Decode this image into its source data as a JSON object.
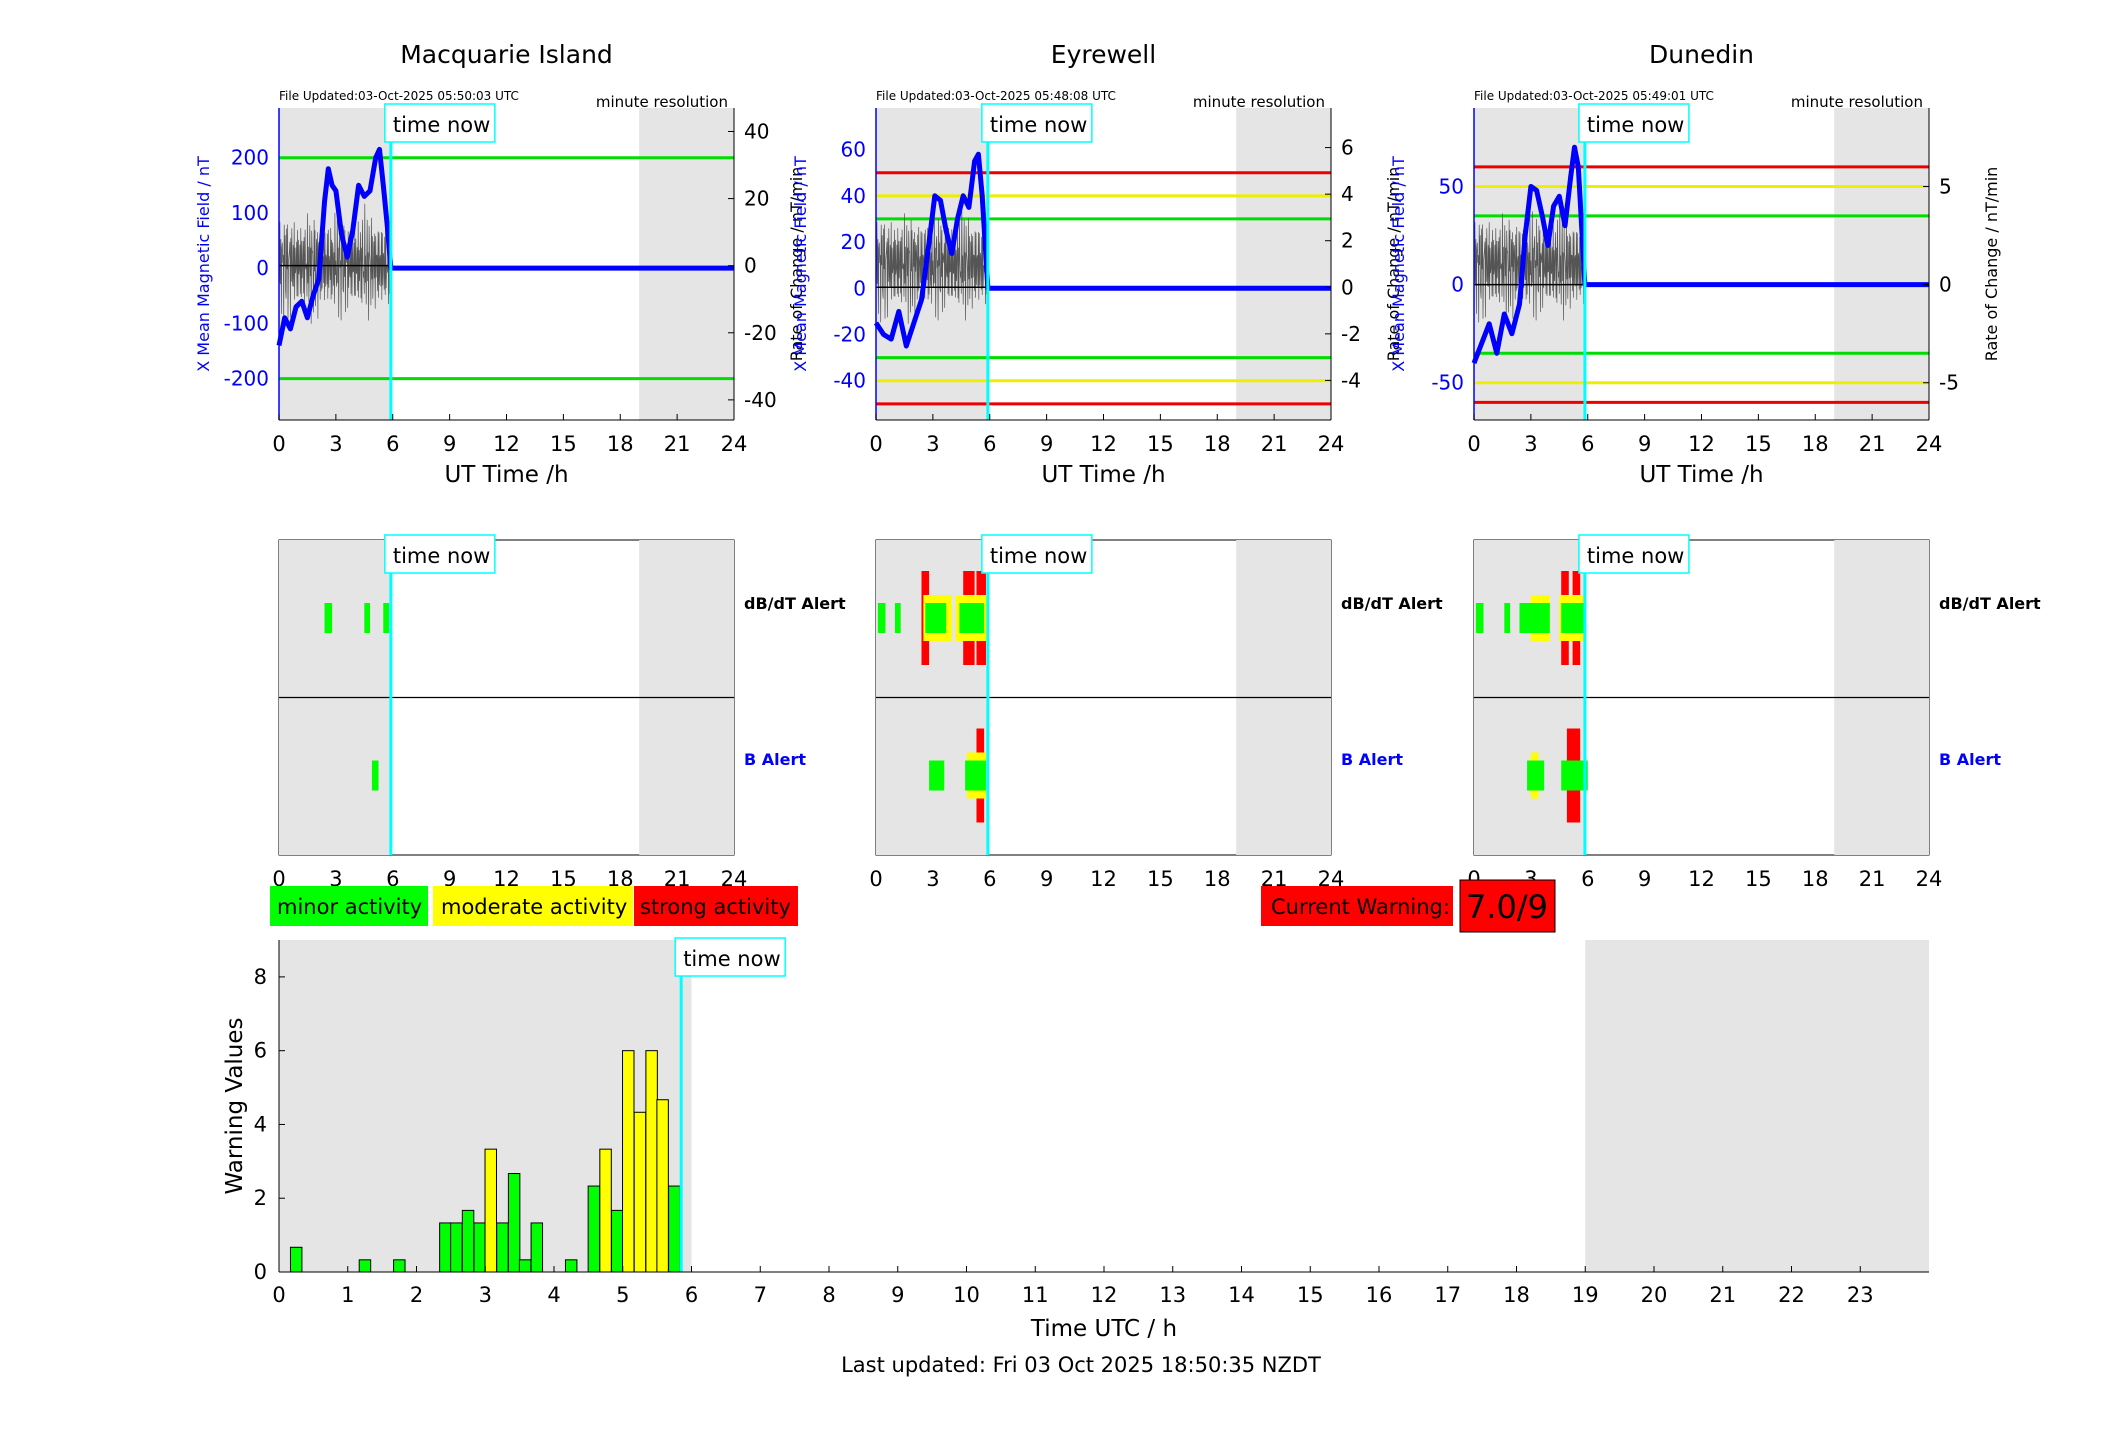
{
  "colors": {
    "minor": "#00ff00",
    "moderate": "#ffff00",
    "strong": "#ff0000",
    "field": "#0000ff",
    "now": "#00ffff",
    "shade": "#e5e5e5"
  },
  "legend": {
    "minor": "minor activity",
    "moderate": "moderate activity",
    "strong": "strong activity"
  },
  "warning": {
    "label": "Current Warning:",
    "value": "7.0/9"
  },
  "footer": {
    "last_updated": "Last updated: Fri 03 Oct 2025 18:50:35 NZDT"
  },
  "common": {
    "time_now": "time now",
    "xlabel": "UT Time /h",
    "ylabel_left": "X Mean Magnetic Field / nT",
    "ylabel_right": "Rate of Change / nT/min",
    "resolution": "minute resolution",
    "dbdt_alert": "dB/dT Alert",
    "b_alert": "B Alert",
    "x_ticks": [
      "0",
      "3",
      "6",
      "9",
      "12",
      "15",
      "18",
      "21",
      "24"
    ]
  },
  "stations": [
    {
      "name": "Macquarie Island",
      "updated": "File Updated:03-Oct-2025 05:50:03 UTC",
      "now": 5.9,
      "left_ticks": [
        "200",
        "100",
        "0",
        "-100",
        "-200"
      ],
      "right_ticks": [
        "40",
        "20",
        "0",
        "-20",
        "-40"
      ]
    },
    {
      "name": "Eyrewell",
      "updated": "File Updated:03-Oct-2025 05:48:08 UTC",
      "now": 5.9,
      "left_ticks": [
        "60",
        "40",
        "20",
        "0",
        "-20",
        "-40"
      ],
      "right_ticks": [
        "6",
        "4",
        "2",
        "0",
        "-2",
        "-4"
      ]
    },
    {
      "name": "Dunedin",
      "updated": "File Updated:03-Oct-2025 05:49:01 UTC",
      "now": 5.85,
      "left_ticks": [
        "50",
        "0",
        "-50"
      ],
      "right_ticks": [
        "5",
        "0",
        "-5"
      ]
    }
  ],
  "chart_data": [
    {
      "type": "line",
      "title": "Macquarie Island",
      "xlabel": "UT Time /h",
      "ylabel": "X Mean Magnetic Field / nT",
      "ylabel_right": "Rate of Change / nT/min",
      "xlim": [
        0,
        24
      ],
      "ylim": [
        -275,
        290
      ],
      "ylim_right": [
        -46,
        47
      ],
      "threshold_lines": [
        {
          "y": 200,
          "color": "green"
        },
        {
          "y": -200,
          "color": "green"
        }
      ],
      "series": [
        {
          "x": [
            0,
            0.3,
            0.6,
            0.9,
            1.2,
            1.5,
            1.8,
            2.1,
            2.4,
            2.6,
            2.8,
            3.0,
            3.3,
            3.6,
            3.9,
            4.2,
            4.5,
            4.8,
            5.1,
            5.3,
            5.5,
            5.7,
            5.9,
            24
          ],
          "y": [
            -140,
            -90,
            -110,
            -70,
            -60,
            -90,
            -50,
            -20,
            120,
            180,
            150,
            140,
            60,
            20,
            70,
            150,
            130,
            140,
            200,
            215,
            150,
            80,
            0,
            0
          ]
        }
      ]
    },
    {
      "type": "line",
      "title": "Eyrewell",
      "xlabel": "UT Time /h",
      "ylabel": "X Mean Magnetic Field / nT",
      "ylabel_right": "Rate of Change / nT/min",
      "xlim": [
        0,
        24
      ],
      "ylim": [
        -57,
        78
      ],
      "ylim_right": [
        -5.7,
        7.7
      ],
      "threshold_lines": [
        {
          "y": 50,
          "color": "red"
        },
        {
          "y": 40,
          "color": "yellow"
        },
        {
          "y": 30,
          "color": "green"
        },
        {
          "y": -30,
          "color": "green"
        },
        {
          "y": -40,
          "color": "yellow"
        },
        {
          "y": -50,
          "color": "red"
        }
      ],
      "series": [
        {
          "x": [
            0,
            0.4,
            0.8,
            1.2,
            1.6,
            2.0,
            2.4,
            2.8,
            3.1,
            3.4,
            3.7,
            4.0,
            4.3,
            4.6,
            4.9,
            5.2,
            5.4,
            5.6,
            5.9,
            24
          ],
          "y": [
            -15,
            -20,
            -22,
            -10,
            -25,
            -15,
            -5,
            20,
            40,
            38,
            25,
            15,
            30,
            40,
            35,
            55,
            58,
            40,
            0,
            0
          ]
        }
      ]
    },
    {
      "type": "line",
      "title": "Dunedin",
      "xlabel": "UT Time /h",
      "ylabel": "X Mean Magnetic Field / nT",
      "ylabel_right": "Rate of Change / nT/min",
      "xlim": [
        0,
        24
      ],
      "ylim": [
        -69,
        90
      ],
      "ylim_right": [
        -6.9,
        9.0
      ],
      "threshold_lines": [
        {
          "y": 60,
          "color": "red"
        },
        {
          "y": 50,
          "color": "yellow"
        },
        {
          "y": 35,
          "color": "green"
        },
        {
          "y": -35,
          "color": "green"
        },
        {
          "y": -50,
          "color": "yellow"
        },
        {
          "y": -60,
          "color": "red"
        }
      ],
      "series": [
        {
          "x": [
            0,
            0.4,
            0.8,
            1.2,
            1.6,
            2.0,
            2.4,
            2.7,
            3.0,
            3.3,
            3.6,
            3.9,
            4.2,
            4.5,
            4.8,
            5.1,
            5.3,
            5.5,
            5.85,
            24
          ],
          "y": [
            -40,
            -30,
            -20,
            -35,
            -15,
            -25,
            -10,
            25,
            50,
            48,
            35,
            20,
            40,
            45,
            30,
            55,
            70,
            60,
            0,
            0
          ]
        }
      ]
    },
    {
      "type": "bar",
      "title": "",
      "xlabel": "Time UTC / h",
      "ylabel": "Warning Values",
      "xlim": [
        0,
        24
      ],
      "ylim": [
        0,
        9
      ],
      "x": [
        0.25,
        1.25,
        1.75,
        2.42,
        2.58,
        2.75,
        2.92,
        3.08,
        3.25,
        3.42,
        3.58,
        3.75,
        4.25,
        4.58,
        4.75,
        4.92,
        5.08,
        5.25,
        5.42,
        5.58,
        5.75
      ],
      "values": [
        0.67,
        0.33,
        0.33,
        1.33,
        1.33,
        1.67,
        1.33,
        3.33,
        1.33,
        2.67,
        0.33,
        1.33,
        0.33,
        2.33,
        3.33,
        1.67,
        6.0,
        4.33,
        6.0,
        4.67,
        2.33
      ],
      "bar_colors": [
        "minor",
        "minor",
        "minor",
        "minor",
        "minor",
        "minor",
        "minor",
        "moderate",
        "minor",
        "minor",
        "minor",
        "minor",
        "minor",
        "minor",
        "moderate",
        "minor",
        "moderate",
        "moderate",
        "moderate",
        "moderate",
        "minor"
      ],
      "x_ticks": [
        "0",
        "1",
        "2",
        "3",
        "4",
        "5",
        "6",
        "7",
        "8",
        "9",
        "10",
        "11",
        "12",
        "13",
        "14",
        "15",
        "16",
        "17",
        "18",
        "19",
        "20",
        "21",
        "22",
        "23"
      ],
      "y_ticks": [
        "0",
        "2",
        "4",
        "6",
        "8"
      ]
    },
    {
      "type": "alert_timeline",
      "title": "Macquarie Island",
      "rows": [
        "dB/dT Alert",
        "B Alert"
      ],
      "dbdt_blocks": [
        [
          2.4,
          2.8,
          "minor"
        ],
        [
          4.5,
          4.8,
          "minor"
        ],
        [
          5.5,
          5.8,
          "minor"
        ]
      ],
      "b_blocks": [
        [
          4.9,
          5.25,
          "minor"
        ]
      ]
    },
    {
      "type": "alert_timeline",
      "title": "Eyrewell",
      "rows": [
        "dB/dT Alert",
        "B Alert"
      ],
      "dbdt_blocks": [
        [
          0.1,
          0.5,
          "minor"
        ],
        [
          1.0,
          1.3,
          "minor"
        ],
        [
          2.4,
          2.8,
          "strong"
        ],
        [
          2.5,
          4.0,
          "moderate"
        ],
        [
          2.6,
          3.7,
          "minor"
        ],
        [
          4.2,
          5.9,
          "moderate"
        ],
        [
          4.4,
          5.7,
          "minor"
        ],
        [
          4.6,
          5.2,
          "strong"
        ],
        [
          5.3,
          5.8,
          "strong"
        ]
      ],
      "b_blocks": [
        [
          2.8,
          3.6,
          "minor"
        ],
        [
          4.8,
          5.8,
          "moderate"
        ],
        [
          4.7,
          5.8,
          "minor"
        ],
        [
          5.3,
          5.7,
          "strong"
        ]
      ]
    },
    {
      "type": "alert_timeline",
      "title": "Dunedin",
      "rows": [
        "dB/dT Alert",
        "B Alert"
      ],
      "dbdt_blocks": [
        [
          0.1,
          0.5,
          "minor"
        ],
        [
          1.6,
          1.9,
          "minor"
        ],
        [
          2.4,
          4.0,
          "minor"
        ],
        [
          3.0,
          4.0,
          "moderate"
        ],
        [
          4.5,
          5.9,
          "moderate"
        ],
        [
          4.6,
          5.8,
          "minor"
        ],
        [
          4.6,
          5.0,
          "strong"
        ],
        [
          5.2,
          5.6,
          "strong"
        ]
      ],
      "b_blocks": [
        [
          2.8,
          3.7,
          "minor"
        ],
        [
          3.0,
          3.4,
          "moderate"
        ],
        [
          4.6,
          6.0,
          "minor"
        ],
        [
          4.9,
          5.6,
          "strong"
        ]
      ]
    }
  ]
}
